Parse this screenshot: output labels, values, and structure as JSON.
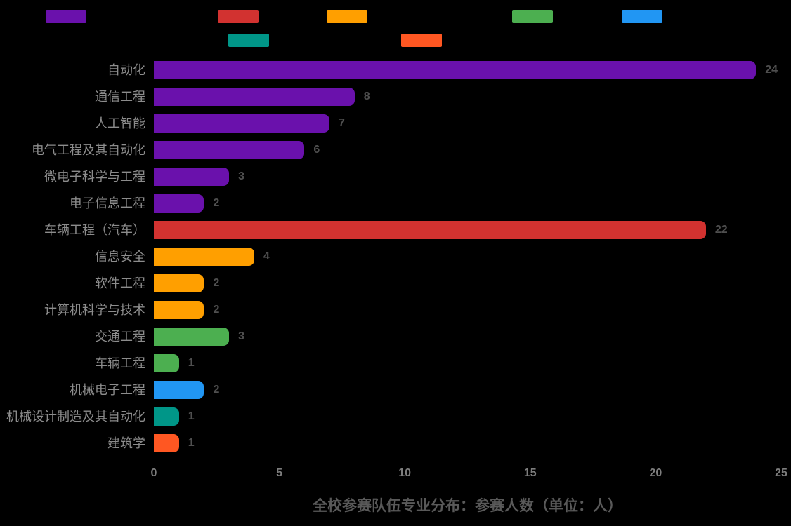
{
  "background": "#000000",
  "palette": {
    "purple": "#6a11ac",
    "red": "#d23230",
    "orange": "#ff9f00",
    "green": "#4caf50",
    "blue": "#2196f3",
    "teal": "#009688",
    "deep_orange": "#ff5722"
  },
  "text_colors": {
    "category_label": "#8c8c8c",
    "value_label": "#4f4f4f",
    "axis_tick": "#7d7d7d",
    "title": "#595959"
  },
  "legend": {
    "rows": [
      [
        "purple",
        "red",
        "orange",
        "green",
        "blue"
      ],
      [
        "teal",
        "deep_orange"
      ]
    ]
  },
  "chart_data": {
    "type": "bar",
    "orientation": "horizontal",
    "title": "全校参赛队伍专业分布：参赛人数（单位：人）",
    "categories": [
      "自动化",
      "通信工程",
      "人工智能",
      "电气工程及其自动化",
      "微电子科学与工程",
      "电子信息工程",
      "车辆工程（汽车）",
      "信息安全",
      "软件工程",
      "计算机科学与技术",
      "交通工程",
      "车辆工程",
      "机械电子工程",
      "机械设计制造及其自动化",
      "建筑学"
    ],
    "values": [
      24,
      8,
      7,
      6,
      3,
      2,
      22,
      4,
      2,
      2,
      3,
      1,
      2,
      1,
      1
    ],
    "bar_color_keys": [
      "purple",
      "purple",
      "purple",
      "purple",
      "purple",
      "purple",
      "red",
      "orange",
      "orange",
      "orange",
      "green",
      "green",
      "blue",
      "teal",
      "deep_orange"
    ],
    "x_ticks": [
      "0",
      "5",
      "10",
      "15",
      "20",
      "25"
    ],
    "xlim": [
      0,
      25
    ],
    "grid": false,
    "legend_position": "top",
    "value_labels_shown": true
  }
}
